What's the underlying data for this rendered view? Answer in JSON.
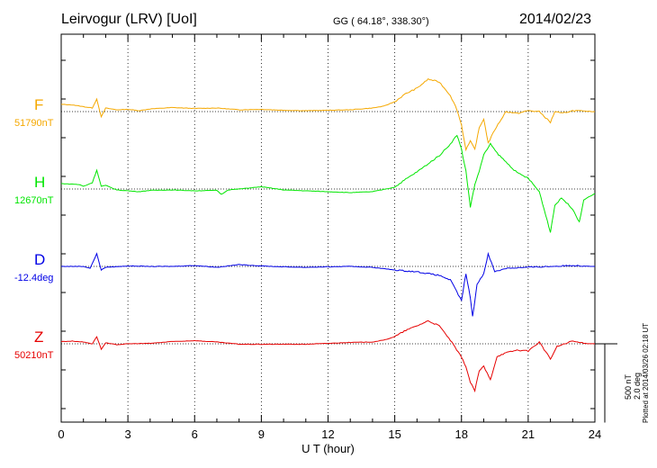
{
  "header": {
    "station": "Leirvogur (LRV)  [UoI]",
    "coords": "GG ( 64.18°, 338.30°)",
    "date": "2014/02/23"
  },
  "footer": {
    "plotted": "Plotted at 2014/03/26 02:18 UT",
    "scale_nt": "500 nT",
    "scale_deg": "2.0 deg"
  },
  "chart_data": {
    "type": "line",
    "title": "Leirvogur (LRV)  [UoI]",
    "xlabel": "U T (hour)",
    "ylabel": "",
    "xlim": [
      0,
      24
    ],
    "x_ticks": [
      "0",
      "3",
      "6",
      "9",
      "12",
      "15",
      "18",
      "21",
      "24"
    ],
    "grid": true,
    "scale_bar": {
      "nT": 500,
      "deg": 2.0
    },
    "series": [
      {
        "name": "F",
        "baseline_label": "51790nT",
        "color": "#f5a800",
        "baseline_value": 51790,
        "unit": "nT",
        "points": [
          [
            0,
            80
          ],
          [
            0.5,
            75
          ],
          [
            1,
            55
          ],
          [
            1.4,
            40
          ],
          [
            1.6,
            140
          ],
          [
            1.8,
            -60
          ],
          [
            2,
            40
          ],
          [
            2.5,
            20
          ],
          [
            3,
            25
          ],
          [
            3.5,
            10
          ],
          [
            4,
            30
          ],
          [
            5,
            45
          ],
          [
            6,
            35
          ],
          [
            7,
            40
          ],
          [
            7.5,
            30
          ],
          [
            8,
            20
          ],
          [
            9,
            25
          ],
          [
            10,
            15
          ],
          [
            11,
            10
          ],
          [
            12,
            15
          ],
          [
            13,
            20
          ],
          [
            14,
            40
          ],
          [
            14.5,
            60
          ],
          [
            15,
            110
          ],
          [
            15.5,
            200
          ],
          [
            16,
            260
          ],
          [
            16.5,
            360
          ],
          [
            17,
            330
          ],
          [
            17.5,
            180
          ],
          [
            17.8,
            20
          ],
          [
            18,
            -150
          ],
          [
            18.2,
            -420
          ],
          [
            18.4,
            -330
          ],
          [
            18.6,
            -420
          ],
          [
            18.8,
            -180
          ],
          [
            19,
            -80
          ],
          [
            19.2,
            -350
          ],
          [
            19.5,
            -200
          ],
          [
            20,
            0
          ],
          [
            20.5,
            -20
          ],
          [
            21,
            10
          ],
          [
            21.5,
            0
          ],
          [
            22,
            -120
          ],
          [
            22.2,
            0
          ],
          [
            22.5,
            -20
          ],
          [
            23,
            10
          ],
          [
            24,
            0
          ]
        ]
      },
      {
        "name": "H",
        "baseline_label": "12670nT",
        "color": "#00e600",
        "baseline_value": 12670,
        "unit": "nT",
        "points": [
          [
            0,
            60
          ],
          [
            0.8,
            50
          ],
          [
            1,
            30
          ],
          [
            1.4,
            70
          ],
          [
            1.6,
            210
          ],
          [
            1.8,
            30
          ],
          [
            2,
            40
          ],
          [
            2.5,
            -10
          ],
          [
            3,
            -20
          ],
          [
            3.5,
            -30
          ],
          [
            4,
            -15
          ],
          [
            5,
            -10
          ],
          [
            6,
            -20
          ],
          [
            7,
            -15
          ],
          [
            7.2,
            -60
          ],
          [
            7.5,
            -10
          ],
          [
            8,
            0
          ],
          [
            9,
            25
          ],
          [
            10,
            -10
          ],
          [
            11,
            -20
          ],
          [
            12,
            -30
          ],
          [
            13,
            -40
          ],
          [
            14,
            -30
          ],
          [
            15,
            20
          ],
          [
            15.5,
            110
          ],
          [
            16,
            190
          ],
          [
            16.5,
            280
          ],
          [
            17,
            370
          ],
          [
            17.5,
            500
          ],
          [
            17.8,
            600
          ],
          [
            18,
            440
          ],
          [
            18.2,
            200
          ],
          [
            18.4,
            -200
          ],
          [
            18.6,
            50
          ],
          [
            18.8,
            200
          ],
          [
            19,
            380
          ],
          [
            19.3,
            500
          ],
          [
            19.6,
            400
          ],
          [
            20,
            300
          ],
          [
            20.5,
            180
          ],
          [
            21,
            120
          ],
          [
            21.5,
            -30
          ],
          [
            22,
            -480
          ],
          [
            22.2,
            -180
          ],
          [
            22.5,
            -100
          ],
          [
            23,
            -220
          ],
          [
            23.3,
            -370
          ],
          [
            23.5,
            -120
          ],
          [
            24,
            -50
          ]
        ]
      },
      {
        "name": "D",
        "baseline_label": "-12.4deg",
        "color": "#0000e6",
        "baseline_value": -12.4,
        "unit": "deg",
        "points": [
          [
            0,
            0
          ],
          [
            1,
            0
          ],
          [
            1.3,
            -20
          ],
          [
            1.6,
            140
          ],
          [
            1.8,
            -40
          ],
          [
            2,
            -10
          ],
          [
            3,
            5
          ],
          [
            4,
            0
          ],
          [
            5,
            0
          ],
          [
            6,
            10
          ],
          [
            7,
            -10
          ],
          [
            8,
            20
          ],
          [
            9,
            5
          ],
          [
            10,
            -5
          ],
          [
            11,
            -10
          ],
          [
            12,
            -5
          ],
          [
            13,
            0
          ],
          [
            14,
            -10
          ],
          [
            15,
            -40
          ],
          [
            16,
            -60
          ],
          [
            17,
            -100
          ],
          [
            17.5,
            -150
          ],
          [
            18,
            -380
          ],
          [
            18.2,
            -80
          ],
          [
            18.4,
            -350
          ],
          [
            18.5,
            -560
          ],
          [
            18.7,
            -200
          ],
          [
            19,
            -80
          ],
          [
            19.2,
            140
          ],
          [
            19.5,
            -60
          ],
          [
            20,
            -20
          ],
          [
            21,
            -10
          ],
          [
            22,
            0
          ],
          [
            23,
            10
          ],
          [
            24,
            0
          ]
        ]
      },
      {
        "name": "Z",
        "baseline_label": "50210nT",
        "color": "#e60000",
        "baseline_value": 50210,
        "unit": "nT",
        "points": [
          [
            0,
            25
          ],
          [
            0.5,
            30
          ],
          [
            1,
            20
          ],
          [
            1.4,
            0
          ],
          [
            1.6,
            80
          ],
          [
            1.8,
            -60
          ],
          [
            2,
            10
          ],
          [
            2.5,
            -10
          ],
          [
            3,
            0
          ],
          [
            4,
            5
          ],
          [
            5,
            25
          ],
          [
            6,
            35
          ],
          [
            7,
            20
          ],
          [
            8,
            -5
          ],
          [
            9,
            -5
          ],
          [
            10,
            -5
          ],
          [
            11,
            -5
          ],
          [
            12,
            5
          ],
          [
            13,
            15
          ],
          [
            14,
            20
          ],
          [
            14.5,
            40
          ],
          [
            15,
            80
          ],
          [
            15.5,
            150
          ],
          [
            16,
            200
          ],
          [
            16.5,
            255
          ],
          [
            17,
            200
          ],
          [
            17.5,
            40
          ],
          [
            18,
            -150
          ],
          [
            18.2,
            -250
          ],
          [
            18.4,
            -430
          ],
          [
            18.6,
            -520
          ],
          [
            18.8,
            -300
          ],
          [
            19,
            -250
          ],
          [
            19.3,
            -400
          ],
          [
            19.6,
            -140
          ],
          [
            20,
            -100
          ],
          [
            20.5,
            -70
          ],
          [
            21,
            -80
          ],
          [
            21.5,
            20
          ],
          [
            22,
            -170
          ],
          [
            22.3,
            -30
          ],
          [
            23,
            30
          ],
          [
            23.5,
            5
          ],
          [
            24,
            0
          ]
        ]
      }
    ]
  }
}
